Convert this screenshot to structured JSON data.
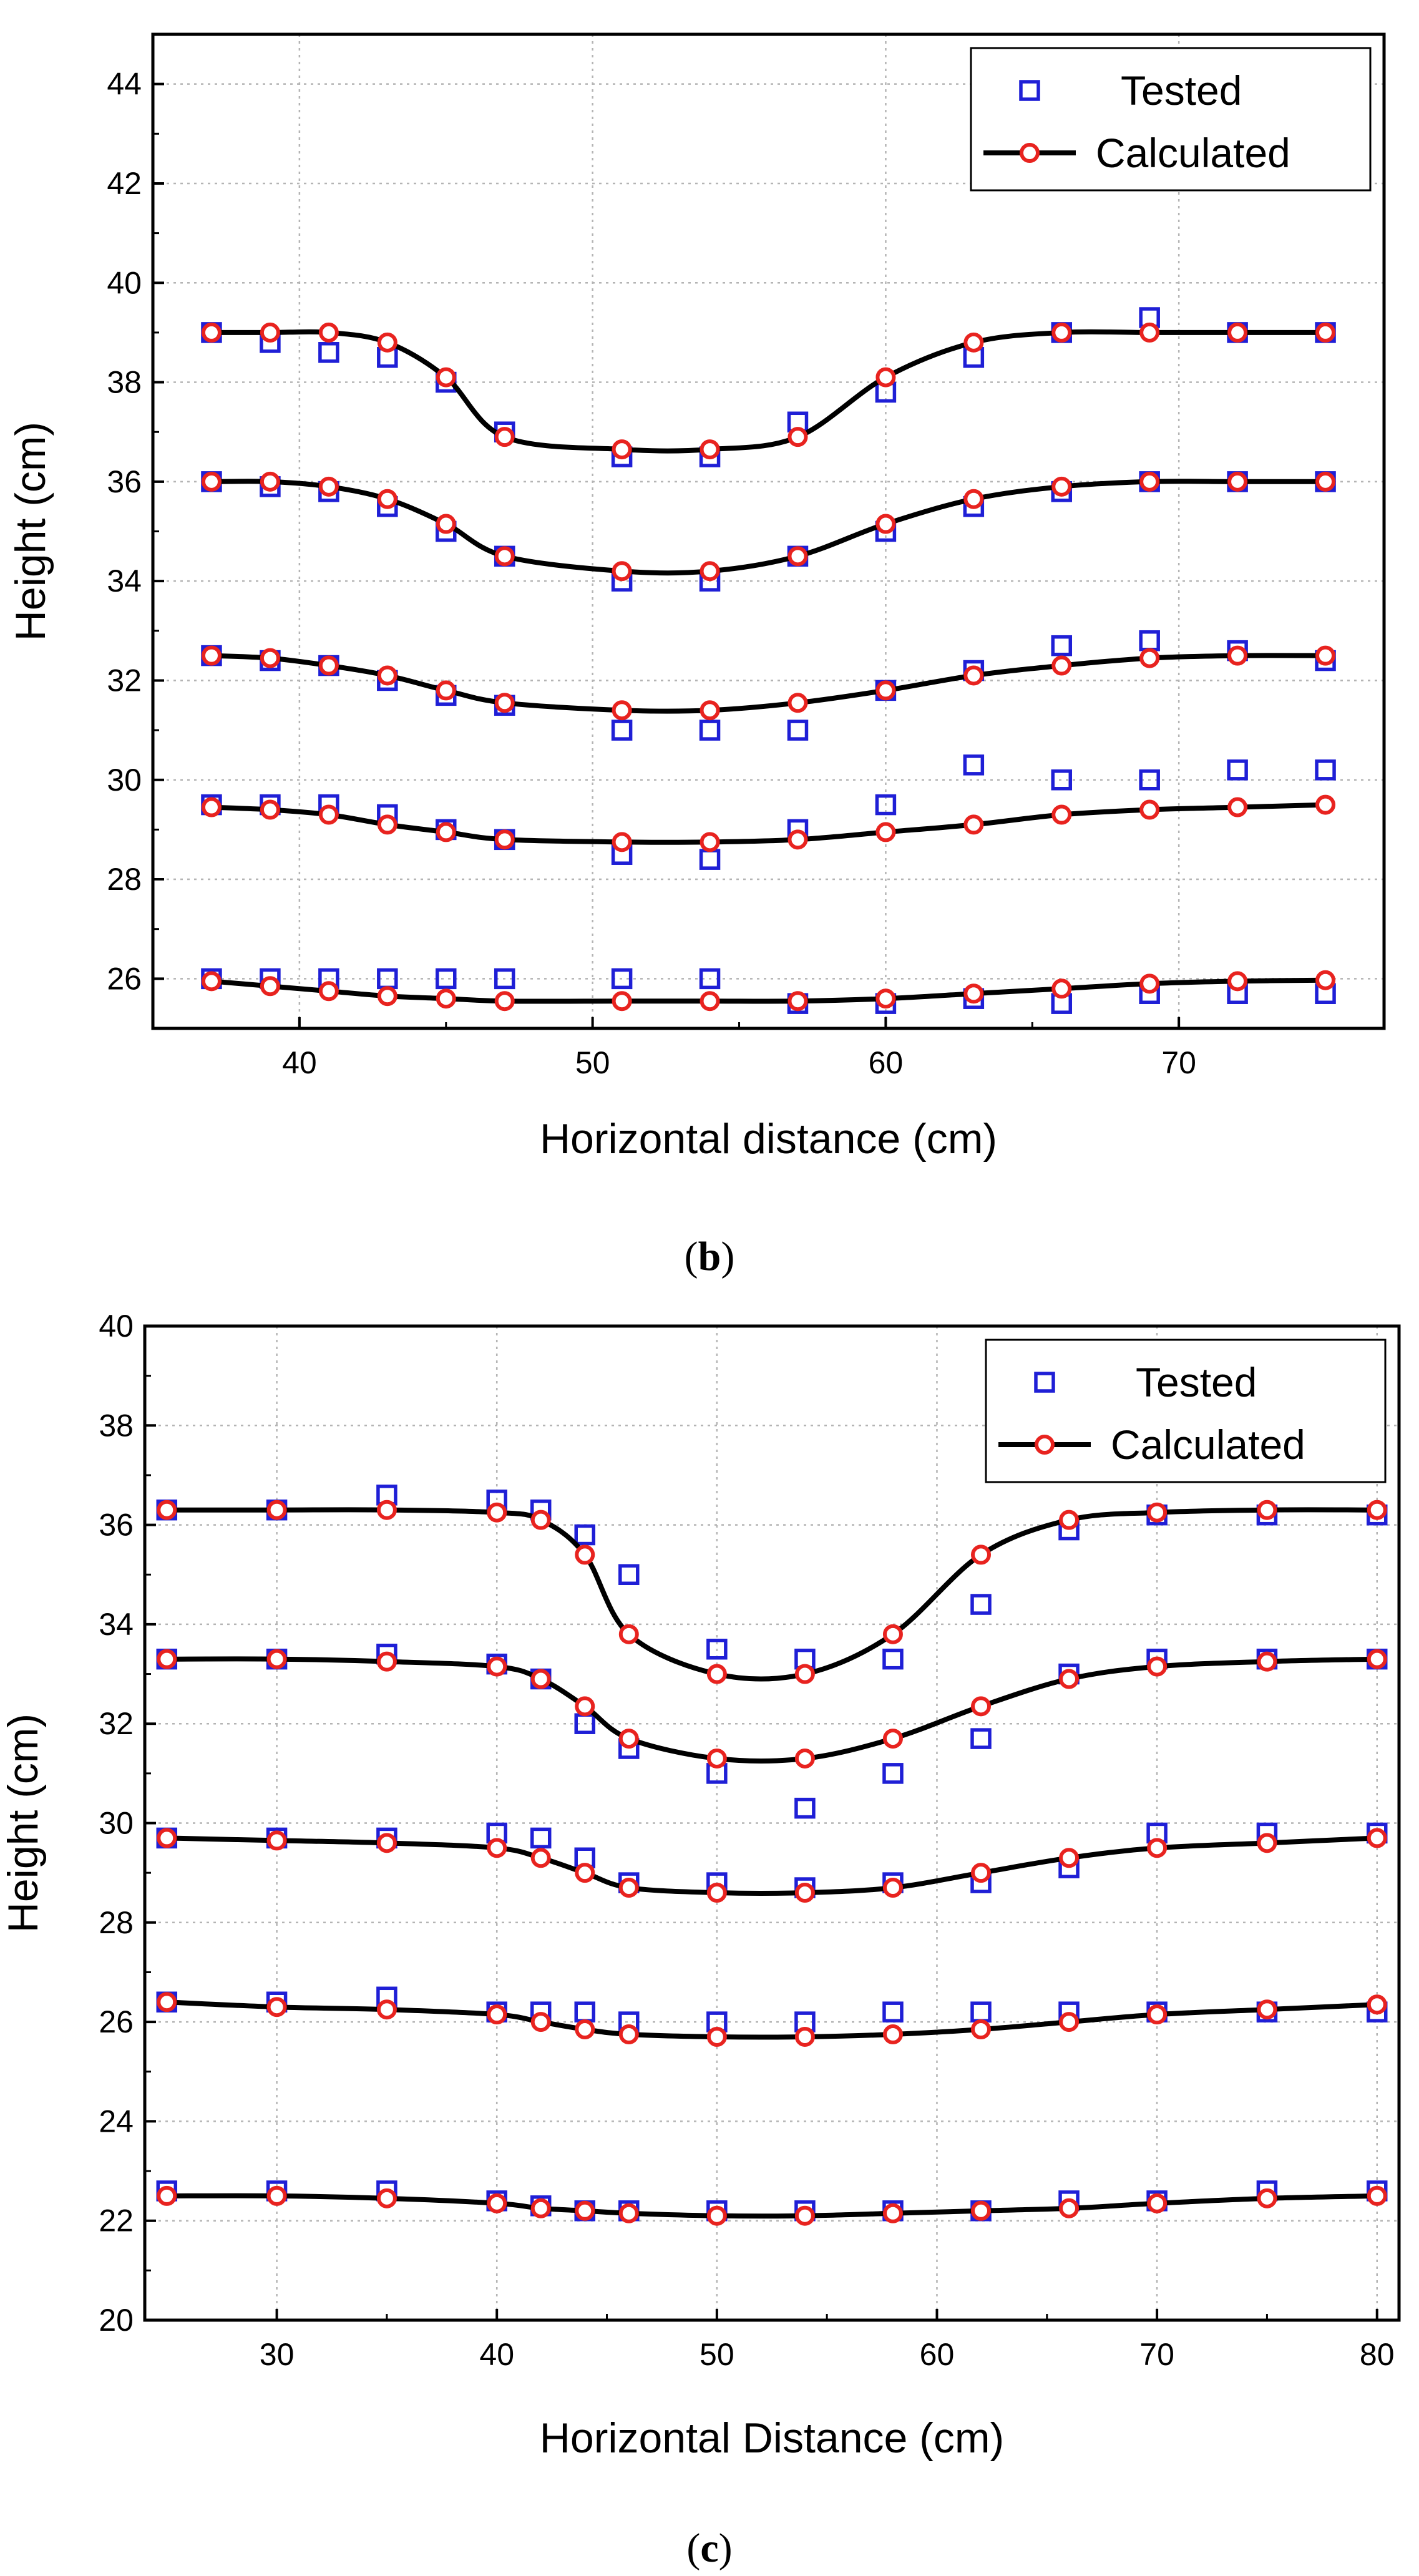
{
  "chart_data": [
    {
      "type": "scatter",
      "panel": "b",
      "caption": {
        "open": "(",
        "letter": "b",
        "close": ")"
      },
      "xlabel": "Horizontal distance (cm)",
      "ylabel": "Height (cm)",
      "xlim": [
        35,
        77
      ],
      "ylim": [
        25,
        45
      ],
      "xticks": [
        40,
        50,
        60,
        70
      ],
      "yticks": [
        26,
        28,
        30,
        32,
        34,
        36,
        38,
        40,
        42,
        44
      ],
      "grid": true,
      "legend": {
        "position": "top-right",
        "tested": "Tested",
        "calculated": "Calculated"
      },
      "x": [
        37,
        39,
        41,
        43,
        45,
        47,
        51,
        54,
        57,
        60,
        63,
        66,
        69,
        72,
        75
      ],
      "series": [
        {
          "name": "Tested",
          "values": [
            39.0,
            38.8,
            38.6,
            38.5,
            38.0,
            37.0,
            36.5,
            36.5,
            37.2,
            37.8,
            38.5,
            39.0,
            39.3,
            39.0,
            39.0
          ]
        },
        {
          "name": "Calculated",
          "values": [
            39.0,
            39.0,
            39.0,
            38.8,
            38.1,
            36.9,
            36.65,
            36.65,
            36.9,
            38.1,
            38.8,
            39.0,
            39.0,
            39.0,
            39.0
          ]
        },
        {
          "name": "Tested",
          "values": [
            36.0,
            35.9,
            35.8,
            35.5,
            35.0,
            34.5,
            34.0,
            34.0,
            34.5,
            35.0,
            35.5,
            35.8,
            36.0,
            36.0,
            36.0
          ]
        },
        {
          "name": "Calculated",
          "values": [
            36.0,
            36.0,
            35.9,
            35.65,
            35.15,
            34.5,
            34.2,
            34.2,
            34.5,
            35.15,
            35.65,
            35.9,
            36.0,
            36.0,
            36.0
          ]
        },
        {
          "name": "Tested",
          "values": [
            32.5,
            32.4,
            32.3,
            32.0,
            31.7,
            31.5,
            31.0,
            31.0,
            31.0,
            31.8,
            32.2,
            32.7,
            32.8,
            32.6,
            32.4
          ]
        },
        {
          "name": "Calculated",
          "values": [
            32.5,
            32.45,
            32.3,
            32.1,
            31.8,
            31.55,
            31.4,
            31.4,
            31.55,
            31.8,
            32.1,
            32.3,
            32.45,
            32.5,
            32.5
          ]
        },
        {
          "name": "Tested",
          "values": [
            29.5,
            29.5,
            29.5,
            29.3,
            29.0,
            28.8,
            28.5,
            28.4,
            29.0,
            29.5,
            30.3,
            30.0,
            30.0,
            30.2,
            30.2
          ]
        },
        {
          "name": "Calculated",
          "values": [
            29.45,
            29.4,
            29.3,
            29.1,
            28.95,
            28.8,
            28.75,
            28.75,
            28.8,
            28.95,
            29.1,
            29.3,
            29.4,
            29.45,
            29.5
          ]
        },
        {
          "name": "Tested",
          "values": [
            26.0,
            26.0,
            26.0,
            26.0,
            26.0,
            26.0,
            26.0,
            26.0,
            25.5,
            25.5,
            25.6,
            25.5,
            25.7,
            25.7,
            25.7
          ]
        },
        {
          "name": "Calculated",
          "values": [
            25.95,
            25.85,
            25.75,
            25.65,
            25.6,
            25.55,
            25.55,
            25.55,
            25.55,
            25.6,
            25.7,
            25.8,
            25.9,
            25.95,
            25.97
          ]
        }
      ]
    },
    {
      "type": "scatter",
      "panel": "c",
      "caption": {
        "open": "(",
        "letter": "c",
        "close": ")"
      },
      "xlabel": "Horizontal Distance (cm)",
      "ylabel": "Height (cm)",
      "xlim": [
        24,
        81
      ],
      "ylim": [
        20,
        40
      ],
      "xticks": [
        30,
        40,
        50,
        60,
        70,
        80
      ],
      "yticks": [
        20,
        22,
        24,
        26,
        28,
        30,
        32,
        34,
        36,
        38,
        40
      ],
      "grid": true,
      "legend": {
        "position": "top-right",
        "tested": "Tested",
        "calculated": "Calculated"
      },
      "x": [
        25,
        30,
        35,
        40,
        42,
        44,
        46,
        50,
        54,
        58,
        62,
        66,
        70,
        75,
        80
      ],
      "series": [
        {
          "name": "Tested",
          "values": [
            36.3,
            36.3,
            36.6,
            36.5,
            36.3,
            35.8,
            35.0,
            33.5,
            33.3,
            33.3,
            34.4,
            35.9,
            36.2,
            36.2,
            36.2
          ]
        },
        {
          "name": "Calculated",
          "values": [
            36.3,
            36.3,
            36.3,
            36.25,
            36.1,
            35.4,
            33.8,
            33.0,
            33.0,
            33.8,
            35.4,
            36.1,
            36.25,
            36.3,
            36.3
          ]
        },
        {
          "name": "Tested",
          "values": [
            33.3,
            33.3,
            33.4,
            33.2,
            32.9,
            32.0,
            31.5,
            31.0,
            30.3,
            31.0,
            31.7,
            33.0,
            33.3,
            33.3,
            33.3
          ]
        },
        {
          "name": "Calculated",
          "values": [
            33.3,
            33.3,
            33.25,
            33.15,
            32.9,
            32.35,
            31.7,
            31.3,
            31.3,
            31.7,
            32.35,
            32.9,
            33.15,
            33.25,
            33.3
          ]
        },
        {
          "name": "Tested",
          "values": [
            29.7,
            29.7,
            29.7,
            29.8,
            29.7,
            29.3,
            28.8,
            28.8,
            28.7,
            28.8,
            28.8,
            29.1,
            29.8,
            29.8,
            29.8
          ]
        },
        {
          "name": "Calculated",
          "values": [
            29.7,
            29.65,
            29.6,
            29.5,
            29.3,
            29.0,
            28.7,
            28.6,
            28.6,
            28.7,
            29.0,
            29.3,
            29.5,
            29.6,
            29.7
          ]
        },
        {
          "name": "Tested",
          "values": [
            26.4,
            26.4,
            26.5,
            26.2,
            26.2,
            26.2,
            26.0,
            26.0,
            26.0,
            26.2,
            26.2,
            26.2,
            26.2,
            26.2,
            26.2
          ]
        },
        {
          "name": "Calculated",
          "values": [
            26.4,
            26.3,
            26.25,
            26.15,
            26.0,
            25.85,
            25.75,
            25.7,
            25.7,
            25.75,
            25.85,
            26.0,
            26.15,
            26.25,
            26.35
          ]
        },
        {
          "name": "Tested",
          "values": [
            22.6,
            22.6,
            22.6,
            22.4,
            22.3,
            22.2,
            22.2,
            22.2,
            22.2,
            22.2,
            22.2,
            22.4,
            22.4,
            22.6,
            22.6
          ]
        },
        {
          "name": "Calculated",
          "values": [
            22.5,
            22.5,
            22.45,
            22.35,
            22.25,
            22.2,
            22.15,
            22.1,
            22.1,
            22.15,
            22.2,
            22.25,
            22.35,
            22.45,
            22.5
          ]
        }
      ]
    }
  ],
  "colors": {
    "tested_marker": "#1f1fd6",
    "calculated_marker": "#e8231f",
    "calculated_line": "#000000",
    "grid": "#b4b4b4",
    "axis": "#000000"
  }
}
